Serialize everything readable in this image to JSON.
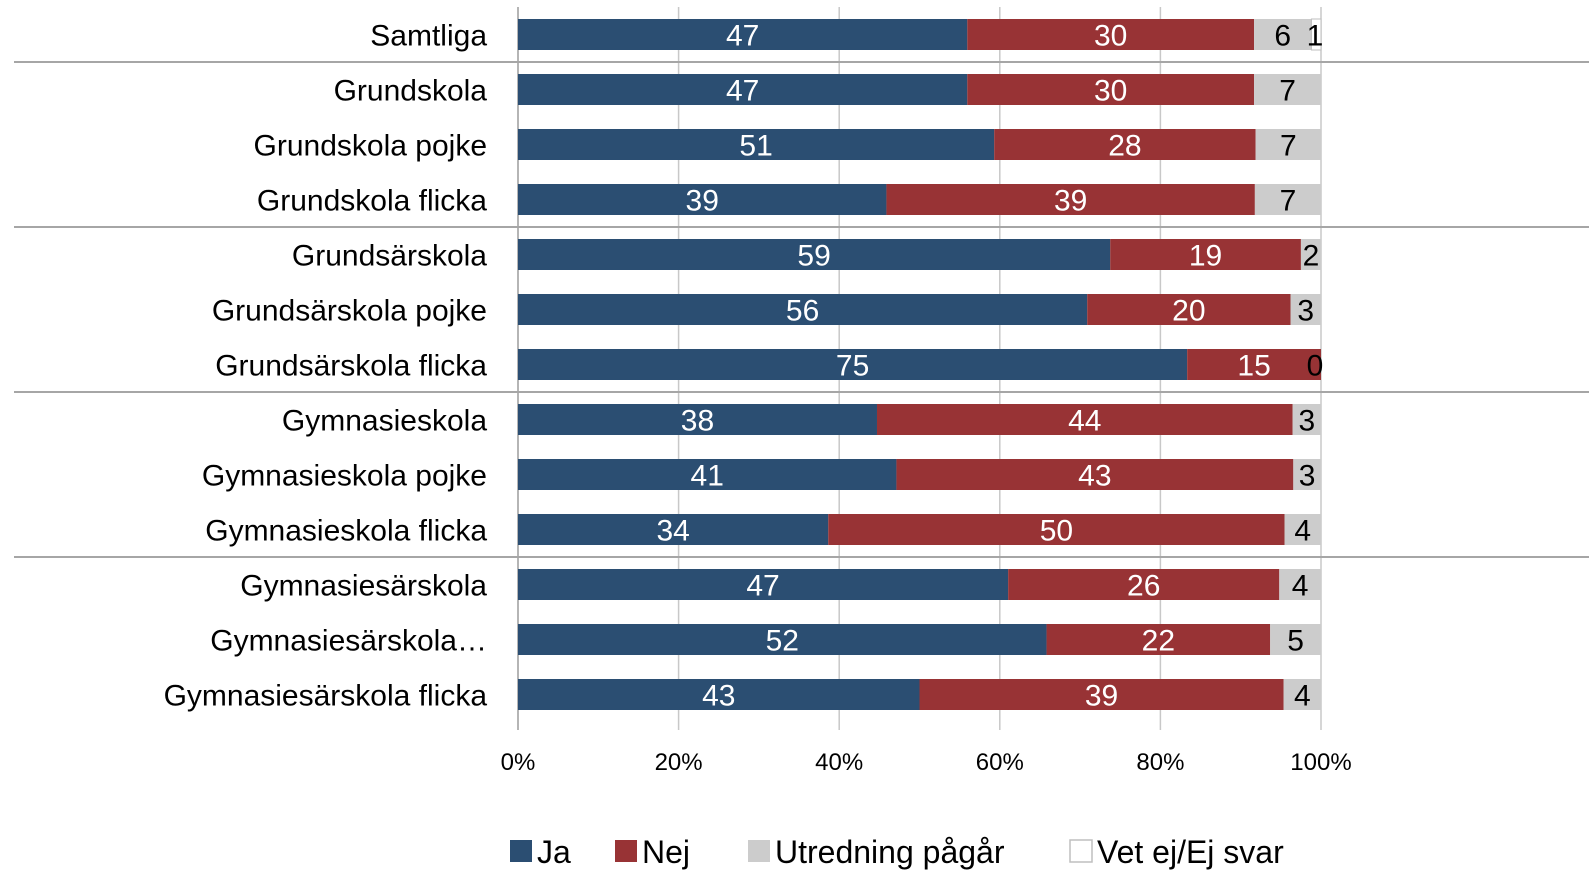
{
  "chart_data": {
    "type": "bar",
    "orientation": "horizontal",
    "stacked": "percent",
    "categories": [
      "Samtliga",
      "Grundskola",
      "Grundskola pojke",
      "Grundskola flicka",
      "Grundsärskola",
      "Grundsärskola pojke",
      "Grundsärskola flicka",
      "Gymnasieskola",
      "Gymnasieskola pojke",
      "Gymnasieskola flicka",
      "Gymnasiesärskola",
      "Gymnasiesärskola…",
      "Gymnasiesärskola flicka"
    ],
    "series": [
      {
        "name": "Ja",
        "color": "#2b4e72",
        "label_color": "#ffffff",
        "values": [
          47,
          47,
          51,
          39,
          59,
          56,
          75,
          38,
          41,
          34,
          47,
          52,
          43
        ]
      },
      {
        "name": "Nej",
        "color": "#983335",
        "label_color": "#ffffff",
        "values": [
          30,
          30,
          28,
          39,
          19,
          20,
          15,
          44,
          43,
          50,
          26,
          22,
          39
        ]
      },
      {
        "name": "Utredning pågår",
        "color": "#cccccc",
        "label_color": "#000000",
        "values": [
          6,
          7,
          7,
          7,
          2,
          3,
          0,
          3,
          3,
          4,
          4,
          5,
          4
        ]
      },
      {
        "name": "Vet ej/Ej svar",
        "color": "#ffffff",
        "label_color": "#000000",
        "values": [
          1,
          0,
          0,
          0,
          0,
          0,
          0,
          0,
          0,
          0,
          0,
          0,
          0
        ]
      }
    ],
    "data_labels": [
      [
        "47",
        "30",
        "6",
        "1"
      ],
      [
        "47",
        "30",
        "7",
        ""
      ],
      [
        "51",
        "28",
        "7",
        ""
      ],
      [
        "39",
        "39",
        "7",
        ""
      ],
      [
        "59",
        "19",
        "2",
        ""
      ],
      [
        "56",
        "20",
        "3",
        ""
      ],
      [
        "75",
        "15",
        "0",
        ""
      ],
      [
        "38",
        "44",
        "3",
        ""
      ],
      [
        "41",
        "43",
        "3",
        ""
      ],
      [
        "34",
        "50",
        "4",
        ""
      ],
      [
        "47",
        "26",
        "4",
        ""
      ],
      [
        "52",
        "22",
        "5",
        ""
      ],
      [
        "43",
        "39",
        "4",
        ""
      ]
    ],
    "group_separators_after": [
      0,
      3,
      6,
      9
    ],
    "x_ticks": [
      "0%",
      "20%",
      "40%",
      "60%",
      "80%",
      "100%"
    ],
    "xlim": [
      0,
      100
    ],
    "grid": true,
    "legend_position": "bottom",
    "title": "",
    "xlabel": "",
    "ylabel": ""
  }
}
